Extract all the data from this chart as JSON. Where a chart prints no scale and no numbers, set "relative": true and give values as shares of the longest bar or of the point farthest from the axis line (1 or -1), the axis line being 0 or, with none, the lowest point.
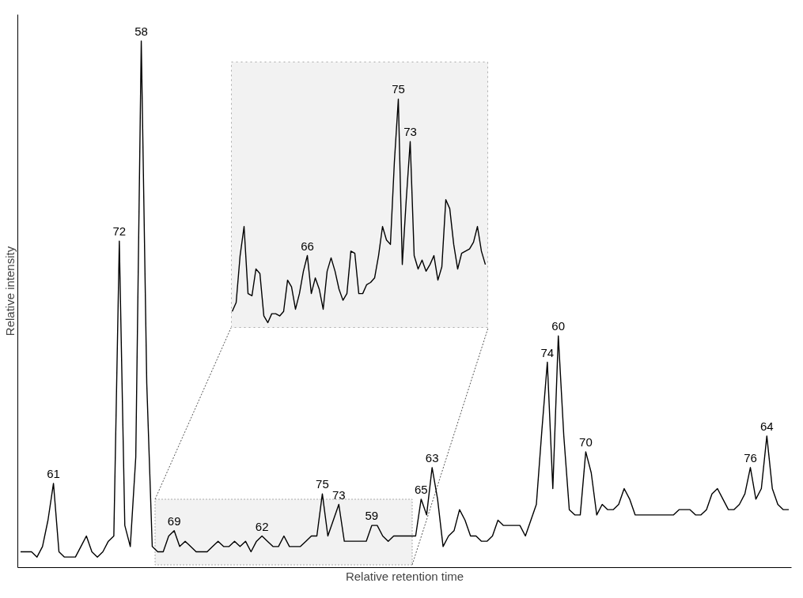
{
  "chart_data": [
    {
      "type": "line",
      "xlabel": "Relative retention time",
      "ylabel": "Relative intensity",
      "relative": true,
      "annotations": [
        {
          "text": "61",
          "y": 0.16
        },
        {
          "text": "72",
          "y": 0.62
        },
        {
          "text": "58",
          "y": 1.0
        },
        {
          "text": "69",
          "y": 0.07
        },
        {
          "text": "62",
          "y": 0.06
        },
        {
          "text": "75",
          "y": 0.14
        },
        {
          "text": "73",
          "y": 0.12
        },
        {
          "text": "59",
          "y": 0.08
        },
        {
          "text": "65",
          "y": 0.13
        },
        {
          "text": "63",
          "y": 0.19
        },
        {
          "text": "74",
          "y": 0.39
        },
        {
          "text": "60",
          "y": 0.44
        },
        {
          "text": "70",
          "y": 0.22
        },
        {
          "text": "76",
          "y": 0.19
        },
        {
          "text": "64",
          "y": 0.25
        }
      ],
      "categories": [
        null,
        null,
        null,
        null,
        null,
        null,
        null,
        null,
        null,
        null,
        null,
        null,
        null,
        null,
        null,
        null,
        null,
        null,
        null,
        null,
        null,
        null,
        null,
        null,
        null,
        null,
        null,
        null,
        null,
        null,
        null,
        null,
        null,
        null,
        null,
        null,
        null,
        null,
        null,
        null,
        null,
        null,
        null,
        null,
        null,
        null,
        null,
        null,
        null,
        null,
        null,
        null,
        null,
        null,
        null,
        null,
        null,
        null,
        null,
        null,
        null,
        null,
        null,
        null,
        null,
        null,
        null,
        null,
        null,
        null,
        null,
        null,
        null,
        null,
        null,
        null,
        null,
        null,
        null,
        null,
        null,
        null,
        null,
        null,
        null,
        null,
        null,
        null,
        null,
        null,
        null,
        null,
        null,
        null,
        null,
        null,
        null,
        null,
        null,
        null,
        null,
        null,
        null,
        null,
        null,
        null,
        null,
        null,
        null,
        null,
        null,
        null,
        null,
        null,
        null,
        null,
        null,
        null,
        null,
        null,
        null,
        null,
        null,
        null,
        null,
        null,
        null,
        null,
        null,
        null,
        null,
        null,
        null,
        null,
        null,
        null,
        null,
        null,
        null,
        null,
        null
      ],
      "series": [
        {
          "color": "#000000",
          "values": [
            0.03,
            0.03,
            0.03,
            0.02,
            0.04,
            0.09,
            0.16,
            0.03,
            0.02,
            0.02,
            0.02,
            0.04,
            0.06,
            0.03,
            0.02,
            0.03,
            0.05,
            0.06,
            0.62,
            0.08,
            0.04,
            0.21,
            1.0,
            0.35,
            0.04,
            0.03,
            0.03,
            0.06,
            0.07,
            0.04,
            0.05,
            0.04,
            0.03,
            0.03,
            0.03,
            0.04,
            0.05,
            0.04,
            0.04,
            0.05,
            0.04,
            0.05,
            0.03,
            0.05,
            0.06,
            0.05,
            0.04,
            0.04,
            0.06,
            0.04,
            0.04,
            0.04,
            0.05,
            0.06,
            0.06,
            0.14,
            0.06,
            0.09,
            0.12,
            0.05,
            0.05,
            0.05,
            0.05,
            0.05,
            0.08,
            0.08,
            0.06,
            0.05,
            0.06,
            0.06,
            0.06,
            0.06,
            0.06,
            0.13,
            0.1,
            0.19,
            0.13,
            0.04,
            0.06,
            0.07,
            0.11,
            0.09,
            0.06,
            0.06,
            0.05,
            0.05,
            0.06,
            0.09,
            0.08,
            0.08,
            0.08,
            0.08,
            0.06,
            0.09,
            0.12,
            0.26,
            0.39,
            0.15,
            0.44,
            0.25,
            0.11,
            0.1,
            0.1,
            0.22,
            0.18,
            0.1,
            0.12,
            0.11,
            0.11,
            0.12,
            0.15,
            0.13,
            0.1,
            0.1,
            0.1,
            0.1,
            0.1,
            0.1,
            0.1,
            0.1,
            0.11,
            0.11,
            0.11,
            0.1,
            0.1,
            0.11,
            0.14,
            0.15,
            0.13,
            0.11,
            0.11,
            0.12,
            0.14,
            0.19,
            0.13,
            0.15,
            0.25,
            0.15,
            0.12,
            0.11,
            0.11
          ],
          "name": null
        }
      ]
    },
    {
      "type": "line",
      "relative": true,
      "annotations": [
        {
          "text": "66",
          "y": 0.3
        },
        {
          "text": "75",
          "y": 1.0
        },
        {
          "text": "73",
          "y": 0.81
        }
      ],
      "categories": [
        null,
        null,
        null,
        null,
        null,
        null,
        null,
        null,
        null,
        null,
        null,
        null,
        null,
        null,
        null,
        null,
        null,
        null,
        null,
        null,
        null,
        null,
        null,
        null,
        null,
        null,
        null,
        null,
        null,
        null,
        null,
        null,
        null,
        null,
        null,
        null,
        null,
        null,
        null,
        null,
        null,
        null,
        null,
        null,
        null,
        null,
        null,
        null,
        null,
        null,
        null,
        null,
        null,
        null,
        null,
        null,
        null,
        null,
        null,
        null,
        null,
        null,
        null,
        null,
        null
      ],
      "series": [
        {
          "color": "#000000",
          "values": [
            0.05,
            0.09,
            0.3,
            0.43,
            0.13,
            0.12,
            0.24,
            0.22,
            0.03,
            0.0,
            0.04,
            0.04,
            0.03,
            0.05,
            0.19,
            0.16,
            0.06,
            0.13,
            0.23,
            0.3,
            0.13,
            0.2,
            0.15,
            0.06,
            0.23,
            0.29,
            0.23,
            0.15,
            0.1,
            0.13,
            0.32,
            0.31,
            0.13,
            0.13,
            0.17,
            0.18,
            0.2,
            0.3,
            0.43,
            0.37,
            0.35,
            0.72,
            1.0,
            0.26,
            0.55,
            0.81,
            0.3,
            0.24,
            0.28,
            0.23,
            0.26,
            0.3,
            0.19,
            0.25,
            0.55,
            0.51,
            0.35,
            0.24,
            0.31,
            0.32,
            0.33,
            0.36,
            0.43,
            0.32,
            0.26
          ],
          "name": null
        }
      ]
    }
  ]
}
